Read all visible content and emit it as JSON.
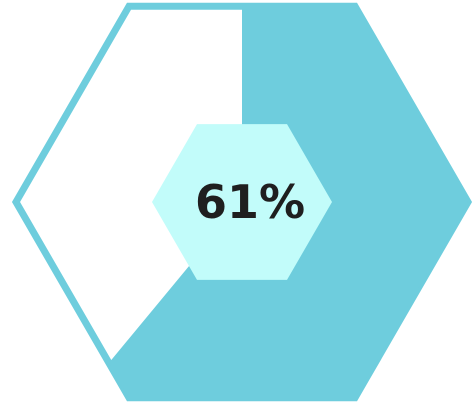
{
  "chart_data": {
    "type": "gauge",
    "shape": "hexagon",
    "value": 61,
    "max": 100,
    "label": "61%",
    "colors": {
      "fill": "#6ecddd",
      "outline": "#6ecddd",
      "inner": "#c2fcfa",
      "background": "#ffffff",
      "text": "#1f1f1f"
    }
  }
}
